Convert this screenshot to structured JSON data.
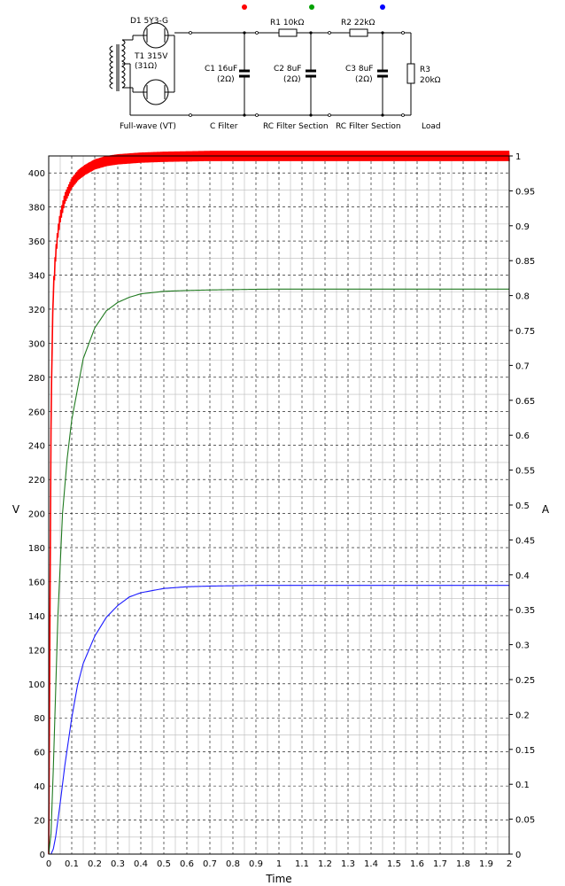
{
  "schematic": {
    "d1_label": "D1 5Y3-G",
    "t1_label": "T1 315V",
    "t1_res": "(31Ω)",
    "r1_label": "R1 10kΩ",
    "r2_label": "R2 22kΩ",
    "c1_label": "C1 16uF",
    "c1_res": "(2Ω)",
    "c2_label": "C2 8uF",
    "c2_res": "(2Ω)",
    "c3_label": "C3 8uF",
    "c3_res": "(2Ω)",
    "r3_label": "R3",
    "r3_value": "20kΩ",
    "section_labels": [
      "Full-wave (VT)",
      "C Filter",
      "RC Filter Section",
      "RC Filter Section",
      "Load"
    ],
    "probe_colors": [
      "#ff0000",
      "#00a000",
      "#0000ff"
    ]
  },
  "chart_data": {
    "type": "line",
    "xlabel": "Time",
    "ylabel": "V",
    "y2label": "A",
    "xlim": [
      0,
      2
    ],
    "ylim": [
      0,
      410
    ],
    "y2lim": [
      0,
      1
    ],
    "x_ticks": [
      "0",
      "0.1",
      "0.2",
      "0.3",
      "0.4",
      "0.5",
      "0.6",
      "0.7",
      "0.8",
      "0.9",
      "1",
      "1.1",
      "1.2",
      "1.3",
      "1.4",
      "1.5",
      "1.6",
      "1.7",
      "1.8",
      "1.9",
      "2"
    ],
    "y_ticks": [
      "0",
      "20",
      "40",
      "60",
      "80",
      "100",
      "120",
      "140",
      "160",
      "180",
      "200",
      "220",
      "240",
      "260",
      "280",
      "300",
      "320",
      "340",
      "360",
      "380",
      "400"
    ],
    "y2_ticks": [
      "0",
      "0.05",
      "0.1",
      "0.15",
      "0.2",
      "0.25",
      "0.3",
      "0.35",
      "0.4",
      "0.45",
      "0.5",
      "0.55",
      "0.6",
      "0.65",
      "0.7",
      "0.75",
      "0.8",
      "0.85",
      "0.9",
      "0.95",
      "1"
    ],
    "grid": true,
    "series": [
      {
        "color": "#ff0000",
        "ripple": 6,
        "x": [
          0,
          0.005,
          0.01,
          0.015,
          0.02,
          0.03,
          0.04,
          0.05,
          0.07,
          0.1,
          0.13,
          0.16,
          0.2,
          0.25,
          0.3,
          0.4,
          0.5,
          0.7,
          1.0,
          1.5,
          2.0
        ],
        "y": [
          0,
          130,
          250,
          300,
          330,
          352,
          365,
          374,
          385,
          394,
          399,
          402,
          405,
          407,
          408,
          409,
          409.5,
          410,
          410,
          410,
          410
        ]
      },
      {
        "color": "#207a20",
        "ripple": 0,
        "x": [
          0,
          0.01,
          0.02,
          0.04,
          0.06,
          0.08,
          0.1,
          0.15,
          0.2,
          0.25,
          0.3,
          0.35,
          0.4,
          0.5,
          0.6,
          0.7,
          0.8,
          0.9,
          1.0,
          1.5,
          2.0
        ],
        "y": [
          0,
          12,
          50,
          140,
          200,
          232,
          255,
          291,
          309,
          319,
          324,
          327,
          329,
          330.5,
          331,
          331.3,
          331.5,
          331.7,
          331.8,
          331.8,
          331.8
        ]
      },
      {
        "color": "#1a1aff",
        "ripple": 0,
        "x": [
          0,
          0.01,
          0.02,
          0.03,
          0.05,
          0.07,
          0.1,
          0.125,
          0.15,
          0.2,
          0.25,
          0.3,
          0.35,
          0.4,
          0.5,
          0.6,
          0.7,
          0.8,
          0.9,
          1.0,
          1.5,
          2.0
        ],
        "y": [
          0,
          0,
          3,
          10,
          30,
          52,
          80,
          99,
          112,
          128,
          139,
          146,
          151,
          153.5,
          156,
          157,
          157.4,
          157.6,
          157.8,
          157.8,
          157.8,
          157.8
        ]
      }
    ]
  }
}
